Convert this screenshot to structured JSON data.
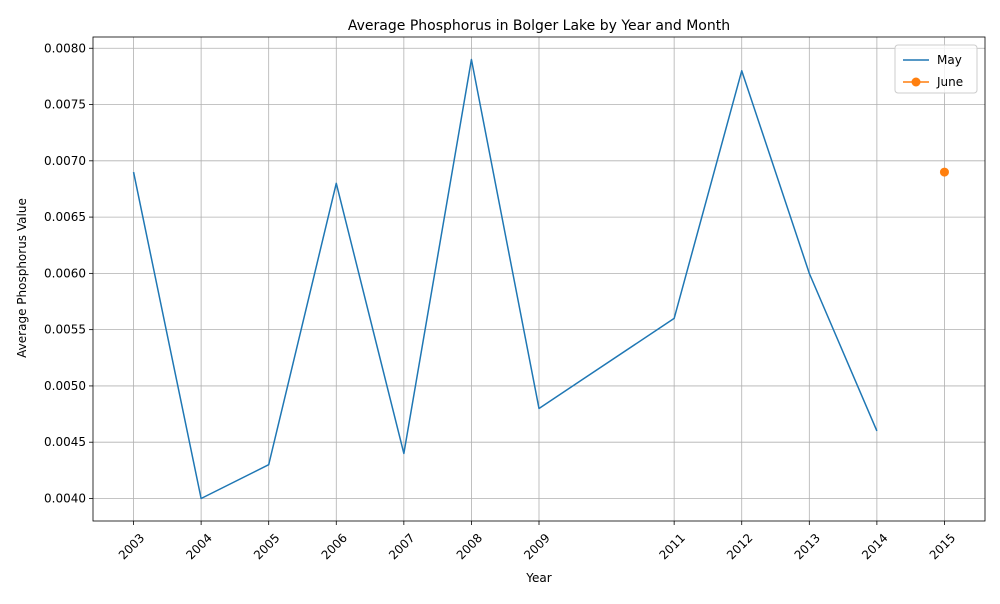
{
  "chart_data": {
    "type": "line",
    "title": "Average Phosphorus in Bolger Lake by Year and Month",
    "xlabel": "Year",
    "ylabel": "Average Phosphorus Value",
    "x_ticks": [
      2003,
      2004,
      2005,
      2006,
      2007,
      2008,
      2009,
      2011,
      2012,
      2013,
      2014,
      2015
    ],
    "xlim": [
      2002.4,
      2015.6
    ],
    "ylim": [
      0.0038,
      0.0081
    ],
    "y_ticks": [
      0.004,
      0.0045,
      0.005,
      0.0055,
      0.006,
      0.0065,
      0.007,
      0.0075,
      0.008
    ],
    "y_tick_labels": [
      "0.0040",
      "0.0045",
      "0.0050",
      "0.0055",
      "0.0060",
      "0.0065",
      "0.0070",
      "0.0075",
      "0.0080"
    ],
    "grid": true,
    "legend_position": "top-right",
    "series": [
      {
        "name": "May",
        "color": "#1f77b4",
        "marker": "none",
        "x": [
          2003,
          2004,
          2005,
          2006,
          2007,
          2008,
          2009,
          2011,
          2012,
          2013,
          2014
        ],
        "y": [
          0.0069,
          0.004,
          0.0043,
          0.0068,
          0.0044,
          0.0079,
          0.0048,
          0.0056,
          0.0078,
          0.006,
          0.0046
        ]
      },
      {
        "name": "June",
        "color": "#ff7f0e",
        "marker": "circle",
        "x": [
          2015
        ],
        "y": [
          0.0069
        ]
      }
    ]
  }
}
